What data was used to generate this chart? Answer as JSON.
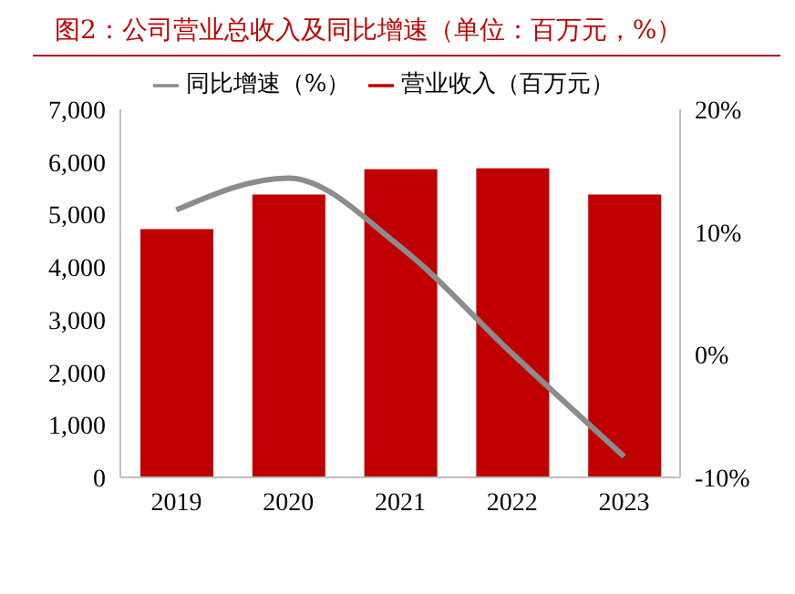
{
  "chart_data": {
    "type": "bar",
    "title": "图2：公司营业总收入及同比增速（单位：百万元，%）",
    "categories": [
      "2019",
      "2020",
      "2021",
      "2022",
      "2023"
    ],
    "series": [
      {
        "name": "营业收入（百万元）",
        "color": "#c00000",
        "values": [
          4720,
          5380,
          5860,
          5880,
          5380
        ]
      },
      {
        "name": "同比增速（%）",
        "type": "line",
        "axis": "y2",
        "color": "#8c8c8c",
        "values": [
          11.8,
          14.4,
          8.8,
          0.1,
          -8.3
        ]
      }
    ],
    "ylim": [
      0,
      7000
    ],
    "yticks": [
      {
        "value": 0,
        "label": "0"
      },
      {
        "value": 1000,
        "label": "1,000"
      },
      {
        "value": 2000,
        "label": "2,000"
      },
      {
        "value": 3000,
        "label": "3,000"
      },
      {
        "value": 4000,
        "label": "4,000"
      },
      {
        "value": 5000,
        "label": "5,000"
      },
      {
        "value": 6000,
        "label": "6,000"
      },
      {
        "value": 7000,
        "label": "7,000"
      }
    ],
    "y2lim": [
      -10,
      20
    ],
    "y2ticks": [
      {
        "value": -10,
        "label": "-10%"
      },
      {
        "value": 0,
        "label": "0%"
      },
      {
        "value": 10,
        "label": "10%"
      },
      {
        "value": 20,
        "label": "20%"
      }
    ],
    "legend": "top",
    "grid": false,
    "marker": "none"
  }
}
